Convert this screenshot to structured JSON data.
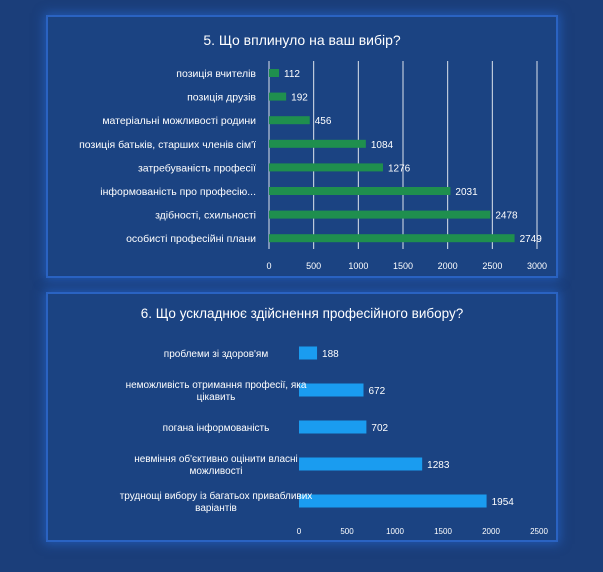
{
  "chart_data": [
    {
      "type": "bar",
      "orientation": "horizontal",
      "title": "5. Що вплинуло на ваш вибір?",
      "categories": [
        "позиція вчителів",
        "позиція друзів",
        "матеріальні можливості родини",
        "позиція батьків, старших членів сім'ї",
        "затребуваність професії",
        "інформованість про професію...",
        "здібності, схильності",
        "особисті професійні плани"
      ],
      "values": [
        112,
        192,
        456,
        1084,
        1276,
        2031,
        2478,
        2749
      ],
      "value_labels": [
        "112",
        "192",
        "456",
        "1084",
        "1276",
        "2031",
        "2478",
        "2749"
      ],
      "xlim": [
        0,
        3000
      ],
      "ticks": [
        0,
        500,
        1000,
        1500,
        2000,
        2500,
        3000
      ],
      "color": "#1f8f4e",
      "grid": true
    },
    {
      "type": "bar",
      "orientation": "horizontal",
      "title": "6. Що ускладнює здійснення професійного вибору?",
      "categories": [
        [
          "проблеми зі здоров'ям"
        ],
        [
          "неможливість отримання професії, яка",
          "цікавить"
        ],
        [
          "погана інформованість"
        ],
        [
          "невміння об'єктивно оцінити власні",
          "можливості"
        ],
        [
          "труднощі вибору із багатьох привабливих",
          "варіантів"
        ]
      ],
      "values": [
        188,
        672,
        702,
        1283,
        1954
      ],
      "value_labels": [
        "188",
        "672",
        "702",
        "1283",
        "1954"
      ],
      "xlim": [
        0,
        2500
      ],
      "ticks": [
        0,
        500,
        1000,
        1500,
        2000,
        2500
      ],
      "color": "#1a9cf0",
      "grid": false
    }
  ]
}
